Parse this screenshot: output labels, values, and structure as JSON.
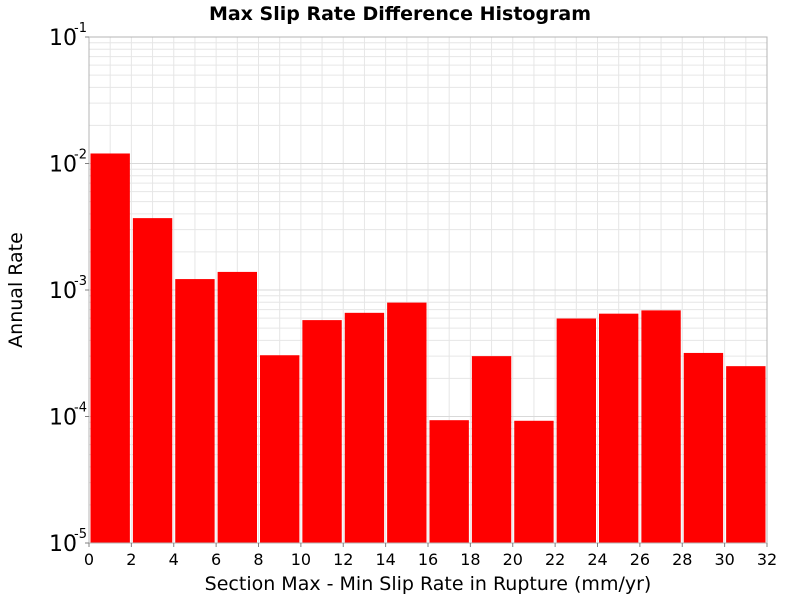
{
  "chart_data": {
    "type": "bar",
    "title": "Max Slip Rate Difference Histogram",
    "xlabel": "Section Max - Min Slip Rate in Rupture (mm/yr)",
    "ylabel": "Annual Rate",
    "x_range": [
      0,
      32
    ],
    "y_range": [
      1e-05,
      0.1
    ],
    "y_scale": "log",
    "bin_width": 2,
    "bin_centers": [
      1,
      3,
      5,
      7,
      9,
      11,
      13,
      15,
      17,
      19,
      21,
      23,
      25,
      27,
      29,
      31
    ],
    "values": [
      0.012,
      0.0037,
      0.00122,
      0.00139,
      0.000305,
      0.000578,
      0.00066,
      0.000795,
      9.35e-05,
      0.0003,
      9.25e-05,
      0.000595,
      0.00065,
      0.00069,
      0.000318,
      0.00025
    ],
    "x_ticks": [
      "0",
      "2",
      "4",
      "6",
      "8",
      "10",
      "12",
      "14",
      "16",
      "18",
      "20",
      "22",
      "24",
      "26",
      "28",
      "30",
      "32"
    ],
    "y_ticks": [
      {
        "base": "10",
        "exp": "-5"
      },
      {
        "base": "10",
        "exp": "-4"
      },
      {
        "base": "10",
        "exp": "-3"
      },
      {
        "base": "10",
        "exp": "-2"
      },
      {
        "base": "10",
        "exp": "-1"
      }
    ],
    "grid": true,
    "bar_color": "#ff0000",
    "grid_color": "#e6e6e6",
    "frame_color": "#b4b4b4"
  }
}
